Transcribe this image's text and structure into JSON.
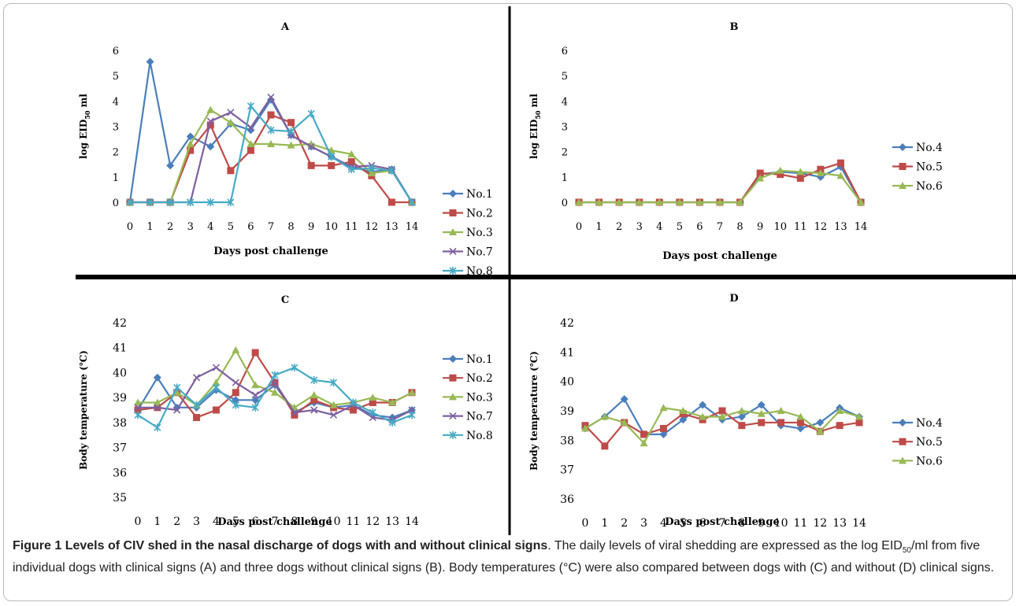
{
  "chart_data": [
    {
      "type": "line",
      "panel": "A",
      "title": "A",
      "xlabel": "Days post challenge",
      "ylabel_parts": [
        "log EID",
        "50",
        " ml"
      ],
      "x": [
        0,
        1,
        2,
        3,
        4,
        5,
        6,
        7,
        8,
        9,
        10,
        11,
        12,
        13,
        14
      ],
      "ylim": [
        0,
        6
      ],
      "yticks": [
        0,
        1,
        2,
        3,
        4,
        5,
        6
      ],
      "legend_position": "right",
      "series": [
        {
          "name": "No.1",
          "color": "#4a7ebb",
          "marker": "diamond",
          "values": [
            0,
            5.55,
            1.45,
            2.6,
            2.2,
            3.1,
            2.85,
            4.05,
            2.65,
            2.2,
            1.8,
            1.4,
            1.2,
            1.3,
            0
          ]
        },
        {
          "name": "No.2",
          "color": "#be4b48",
          "marker": "square",
          "values": [
            0,
            0,
            0,
            2.05,
            3.05,
            1.25,
            2.05,
            3.45,
            3.15,
            1.45,
            1.45,
            1.6,
            1.05,
            0,
            0
          ]
        },
        {
          "name": "No.3",
          "color": "#98b954",
          "marker": "triangle",
          "values": [
            0,
            0,
            0,
            2.3,
            3.65,
            3.15,
            2.3,
            2.3,
            2.25,
            2.3,
            2.05,
            1.9,
            1.15,
            1.25,
            0
          ]
        },
        {
          "name": "No.7",
          "color": "#7d60a0",
          "marker": "x",
          "values": [
            0,
            0,
            0,
            0,
            3.2,
            3.55,
            2.95,
            4.15,
            2.65,
            2.2,
            1.8,
            1.4,
            1.45,
            1.3,
            0
          ]
        },
        {
          "name": "No.8",
          "color": "#46aac5",
          "marker": "asterisk",
          "values": [
            0,
            0,
            0,
            0,
            0,
            0,
            3.8,
            2.85,
            2.8,
            3.5,
            1.8,
            1.3,
            1.35,
            1.25,
            0
          ]
        }
      ]
    },
    {
      "type": "line",
      "panel": "B",
      "title": "B",
      "xlabel": "Days post challenge",
      "ylabel_parts": [
        "log EID",
        "50",
        " ml"
      ],
      "x": [
        0,
        1,
        2,
        3,
        4,
        5,
        6,
        7,
        8,
        9,
        10,
        11,
        12,
        13,
        14
      ],
      "ylim": [
        0,
        6
      ],
      "yticks": [
        0,
        1,
        2,
        3,
        4,
        5,
        6
      ],
      "legend_position": "right",
      "series": [
        {
          "name": "No.4",
          "color": "#4a7ebb",
          "marker": "diamond",
          "values": [
            0,
            0,
            0,
            0,
            0,
            0,
            0,
            0,
            0,
            1.1,
            1.2,
            1.15,
            1.0,
            1.4,
            0
          ]
        },
        {
          "name": "No.5",
          "color": "#be4b48",
          "marker": "square",
          "values": [
            0,
            0,
            0,
            0,
            0,
            0,
            0,
            0,
            0,
            1.15,
            1.1,
            0.95,
            1.3,
            1.55,
            0
          ]
        },
        {
          "name": "No.6",
          "color": "#98b954",
          "marker": "triangle",
          "values": [
            0,
            0,
            0,
            0,
            0,
            0,
            0,
            0,
            0,
            0.95,
            1.25,
            1.2,
            1.15,
            1.05,
            0
          ]
        }
      ]
    },
    {
      "type": "line",
      "panel": "C",
      "title": "C",
      "xlabel": "Days post challenge",
      "ylabel_parts": [
        "Body temperature (℃)"
      ],
      "x": [
        0,
        1,
        2,
        3,
        4,
        5,
        6,
        7,
        8,
        9,
        10,
        11,
        12,
        13,
        14
      ],
      "ylim": [
        35,
        42
      ],
      "yticks": [
        35,
        36,
        37,
        38,
        39,
        40,
        41,
        42
      ],
      "legend_position": "right",
      "series": [
        {
          "name": "No.1",
          "color": "#4a7ebb",
          "marker": "diamond",
          "values": [
            38.5,
            39.8,
            38.6,
            38.6,
            39.3,
            38.9,
            38.9,
            39.5,
            38.4,
            38.8,
            38.6,
            38.7,
            38.3,
            38.2,
            38.5
          ]
        },
        {
          "name": "No.2",
          "color": "#be4b48",
          "marker": "square",
          "values": [
            38.5,
            38.6,
            39.2,
            38.2,
            38.5,
            39.2,
            40.8,
            39.6,
            38.3,
            38.9,
            38.6,
            38.5,
            38.8,
            38.8,
            39.2
          ]
        },
        {
          "name": "No.3",
          "color": "#98b954",
          "marker": "triangle",
          "values": [
            38.8,
            38.8,
            39.2,
            38.7,
            39.6,
            40.9,
            39.5,
            39.2,
            38.6,
            39.1,
            38.7,
            38.8,
            39.0,
            38.8,
            39.2
          ]
        },
        {
          "name": "No.7",
          "color": "#7d60a0",
          "marker": "x",
          "values": [
            38.6,
            38.6,
            38.5,
            39.8,
            40.2,
            39.6,
            39.1,
            39.6,
            38.4,
            38.5,
            38.3,
            38.7,
            38.2,
            38.1,
            38.5
          ]
        },
        {
          "name": "No.8",
          "color": "#46aac5",
          "marker": "asterisk",
          "values": [
            38.3,
            37.8,
            39.4,
            38.7,
            39.4,
            38.7,
            38.6,
            39.9,
            40.2,
            39.7,
            39.6,
            38.8,
            38.4,
            38.0,
            38.3
          ]
        }
      ]
    },
    {
      "type": "line",
      "panel": "D",
      "title": "D",
      "xlabel": "Days post challenge",
      "ylabel_parts": [
        "Body temperature (℃)"
      ],
      "x": [
        0,
        1,
        2,
        3,
        4,
        5,
        6,
        7,
        8,
        9,
        10,
        11,
        12,
        13,
        14
      ],
      "ylim": [
        36,
        42
      ],
      "yticks": [
        36,
        37,
        38,
        39,
        40,
        41,
        42
      ],
      "legend_position": "right",
      "series": [
        {
          "name": "No.4",
          "color": "#4a7ebb",
          "marker": "diamond",
          "values": [
            38.4,
            38.8,
            39.4,
            38.2,
            38.2,
            38.7,
            39.2,
            38.7,
            38.8,
            39.2,
            38.5,
            38.4,
            38.6,
            39.1,
            38.8
          ]
        },
        {
          "name": "No.5",
          "color": "#be4b48",
          "marker": "square",
          "values": [
            38.5,
            37.8,
            38.6,
            38.2,
            38.4,
            38.9,
            38.7,
            39.0,
            38.5,
            38.6,
            38.6,
            38.6,
            38.3,
            38.5,
            38.6
          ]
        },
        {
          "name": "No.6",
          "color": "#98b954",
          "marker": "triangle",
          "values": [
            38.4,
            38.8,
            38.6,
            37.9,
            39.1,
            39.0,
            38.8,
            38.8,
            39.0,
            38.9,
            39.0,
            38.8,
            38.3,
            39.0,
            38.8
          ]
        }
      ]
    }
  ],
  "caption": {
    "label": "Figure 1",
    "title": "Levels of CIV shed in the nasal discharge of dogs with and without clinical signs",
    "body_1": ". The daily levels of viral shedding are expressed as the log EID",
    "body_sub": "50",
    "body_2": "/ml from five individual dogs with clinical signs (A) and three dogs without clinical signs (B). Body temperatures (°C) were also compared between dogs with (C) and without (D) clinical signs."
  }
}
